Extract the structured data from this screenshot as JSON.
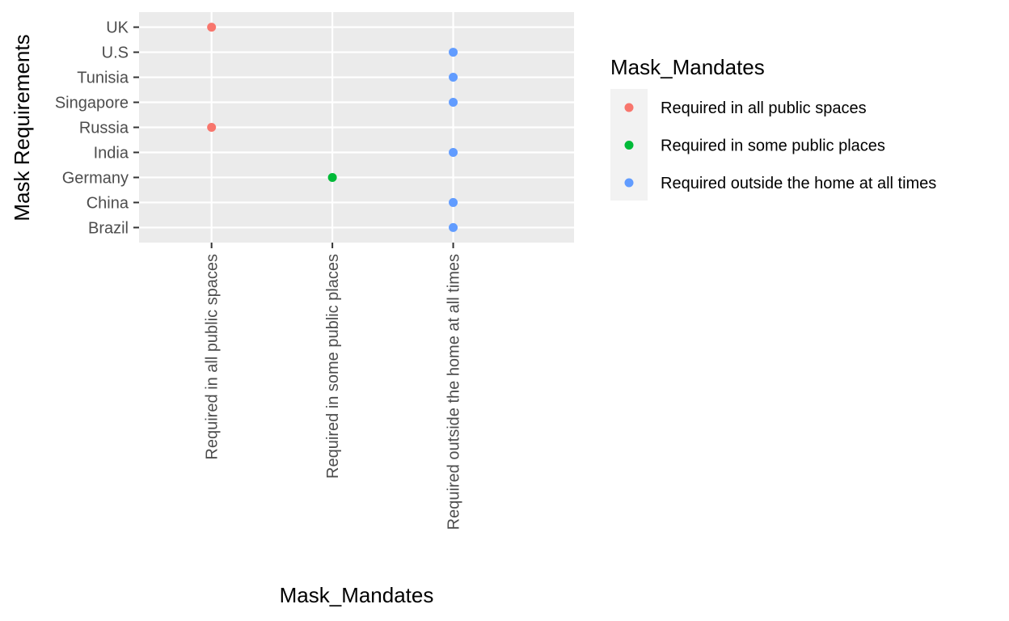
{
  "chart_data": {
    "type": "scatter",
    "xlabel": "Mask_Mandates",
    "ylabel": "Mask Requirements",
    "x_categories": [
      "Required in all public spaces",
      "Required in some public places",
      "Required outside the home at all times"
    ],
    "y_categories": [
      "Brazil",
      "China",
      "Germany",
      "India",
      "Russia",
      "Singapore",
      "Tunisia",
      "U.S",
      "UK"
    ],
    "points": [
      {
        "x": "Required in all public spaces",
        "y": "UK"
      },
      {
        "x": "Required outside the home at all times",
        "y": "U.S"
      },
      {
        "x": "Required outside the home at all times",
        "y": "Tunisia"
      },
      {
        "x": "Required outside the home at all times",
        "y": "Singapore"
      },
      {
        "x": "Required in all public spaces",
        "y": "Russia"
      },
      {
        "x": "Required outside the home at all times",
        "y": "India"
      },
      {
        "x": "Required in some public places",
        "y": "Germany"
      },
      {
        "x": "Required outside the home at all times",
        "y": "China"
      },
      {
        "x": "Required outside the home at all times",
        "y": "Brazil"
      }
    ],
    "legend": {
      "title": "Mask_Mandates",
      "placement": "right",
      "entries": [
        {
          "label": "Required in all public spaces",
          "color": "#F8766D"
        },
        {
          "label": "Required in some public places",
          "color": "#00BA38"
        },
        {
          "label": "Required outside the home at all times",
          "color": "#619CFF"
        }
      ]
    },
    "grid": true,
    "panel_background": "#EBEBEB"
  }
}
